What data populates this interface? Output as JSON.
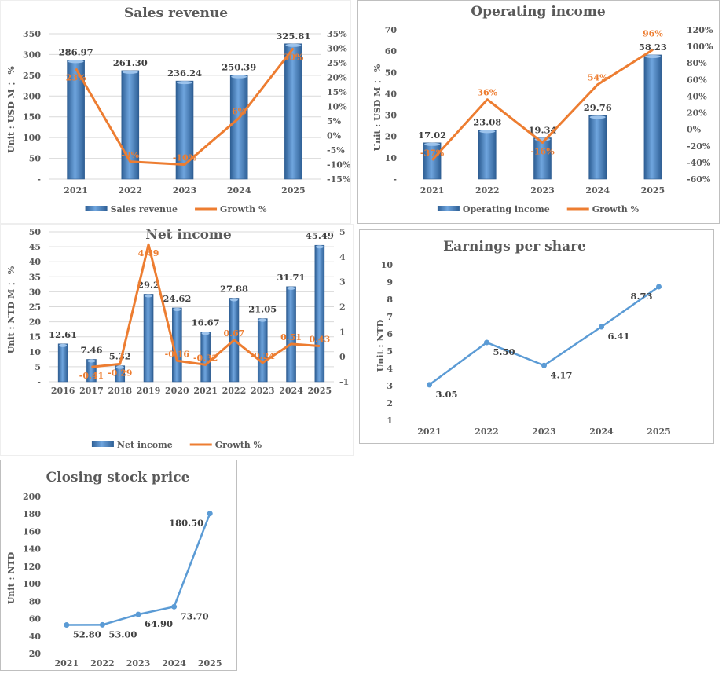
{
  "colors": {
    "bar": "#4A86C8",
    "growth_line": "#ED7D31",
    "line": "#5B9BD5",
    "grid": "#D9D9D9",
    "text": "#595959"
  },
  "chart_data": [
    {
      "type": "bar+line",
      "title": "Sales revenue",
      "ylabel": "Unit : USD M ： %",
      "categories": [
        "2021",
        "2022",
        "2023",
        "2024",
        "2025"
      ],
      "ylim": [
        0,
        350
      ],
      "yticks": [
        "-",
        "50",
        "100",
        "150",
        "200",
        "250",
        "300",
        "350"
      ],
      "y2lim": [
        -15,
        35
      ],
      "y2ticks": [
        "-15%",
        "-10%",
        "-5%",
        "0%",
        "5%",
        "10%",
        "15%",
        "20%",
        "25%",
        "30%",
        "35%"
      ],
      "grid": true,
      "legend": "bottom",
      "series": [
        {
          "name": "Sales revenue",
          "type": "bar",
          "axis": "left",
          "values": [
            286.97,
            261.3,
            236.24,
            250.39,
            325.81
          ],
          "labels": [
            "286.97",
            "261.30",
            "236.24",
            "250.39",
            "325.81"
          ]
        },
        {
          "name": "Growth %",
          "type": "line",
          "axis": "right",
          "values": [
            23,
            -9,
            -10,
            6,
            30
          ],
          "labels": [
            "23%",
            "-9%",
            "-10%",
            "6%",
            "30%"
          ]
        }
      ]
    },
    {
      "type": "bar+line",
      "title": "Operating income",
      "ylabel": "Unit : USD M ： %",
      "categories": [
        "2021",
        "2022",
        "2023",
        "2024",
        "2025"
      ],
      "ylim": [
        0,
        70
      ],
      "yticks": [
        "-",
        "10",
        "20",
        "30",
        "40",
        "50",
        "60",
        "70"
      ],
      "y2lim": [
        -60,
        120
      ],
      "y2ticks": [
        "-60%",
        "-40%",
        "-20%",
        "0%",
        "20%",
        "40%",
        "60%",
        "80%",
        "100%",
        "120%"
      ],
      "grid": false,
      "legend": "bottom",
      "series": [
        {
          "name": "Operating income",
          "type": "bar",
          "axis": "left",
          "values": [
            17.02,
            23.08,
            19.34,
            29.76,
            58.23
          ],
          "labels": [
            "17.02",
            "23.08",
            "19.34",
            "29.76",
            "58.23"
          ]
        },
        {
          "name": "Growth %",
          "type": "line",
          "axis": "right",
          "values": [
            -37,
            36,
            -16,
            54,
            96
          ],
          "labels": [
            "-37%",
            "36%",
            "-16%",
            "54%",
            "96%"
          ]
        }
      ]
    },
    {
      "type": "bar+line",
      "title": "Net income",
      "ylabel": "Unit : NTD M ： %",
      "categories": [
        "2016",
        "2017",
        "2018",
        "2019",
        "2020",
        "2021",
        "2022",
        "2023",
        "2024",
        "2025"
      ],
      "ylim": [
        0,
        50
      ],
      "yticks": [
        "-",
        "5",
        "10",
        "15",
        "20",
        "25",
        "30",
        "35",
        "40",
        "45",
        "50"
      ],
      "y2lim": [
        -1,
        5
      ],
      "y2ticks": [
        "-1",
        "0",
        "1",
        "2",
        "3",
        "4",
        "5"
      ],
      "grid": true,
      "legend": "bottom",
      "series": [
        {
          "name": "Net income",
          "type": "bar",
          "axis": "left",
          "values": [
            12.61,
            7.46,
            5.32,
            29.2,
            24.62,
            16.67,
            27.88,
            21.05,
            31.71,
            45.49
          ],
          "labels": [
            "12.61",
            "7.46",
            "5.32",
            "29.2",
            "24.62",
            "16.67",
            "27.88",
            "21.05",
            "31.71",
            "45.49"
          ]
        },
        {
          "name": "Growth %",
          "type": "line",
          "axis": "right",
          "values": [
            null,
            -0.41,
            -0.29,
            4.49,
            -0.16,
            -0.32,
            0.67,
            -0.24,
            0.51,
            0.43
          ],
          "labels": [
            "",
            "-0.41",
            "-0.29",
            "4.49",
            "-0.16",
            "-0.32",
            "0.67",
            "-0.24",
            "0.51",
            "0.43"
          ]
        }
      ]
    },
    {
      "type": "line",
      "title": "Earnings per share",
      "ylabel": "Unit : NTD",
      "categories": [
        "2021",
        "2022",
        "2023",
        "2024",
        "2025"
      ],
      "ylim": [
        1,
        10
      ],
      "yticks": [
        "1",
        "2",
        "3",
        "4",
        "5",
        "6",
        "7",
        "8",
        "9",
        "10"
      ],
      "grid": false,
      "series": [
        {
          "type": "line",
          "values": [
            3.05,
            5.5,
            4.17,
            6.41,
            8.73
          ],
          "labels": [
            "3.05",
            "5.50",
            "4.17",
            "6.41",
            "8.73"
          ]
        }
      ]
    },
    {
      "type": "line",
      "title": "Closing stock price",
      "ylabel": "Unit : NTD",
      "categories": [
        "2021",
        "2022",
        "2023",
        "2024",
        "2025"
      ],
      "ylim": [
        20,
        200
      ],
      "yticks": [
        "20",
        "40",
        "60",
        "80",
        "100",
        "120",
        "140",
        "160",
        "180",
        "200"
      ],
      "grid": false,
      "series": [
        {
          "type": "line",
          "values": [
            52.8,
            53.0,
            64.9,
            73.7,
            180.5
          ],
          "labels": [
            "52.80",
            "53.00",
            "64.90",
            "73.70",
            "180.50"
          ]
        }
      ]
    }
  ]
}
